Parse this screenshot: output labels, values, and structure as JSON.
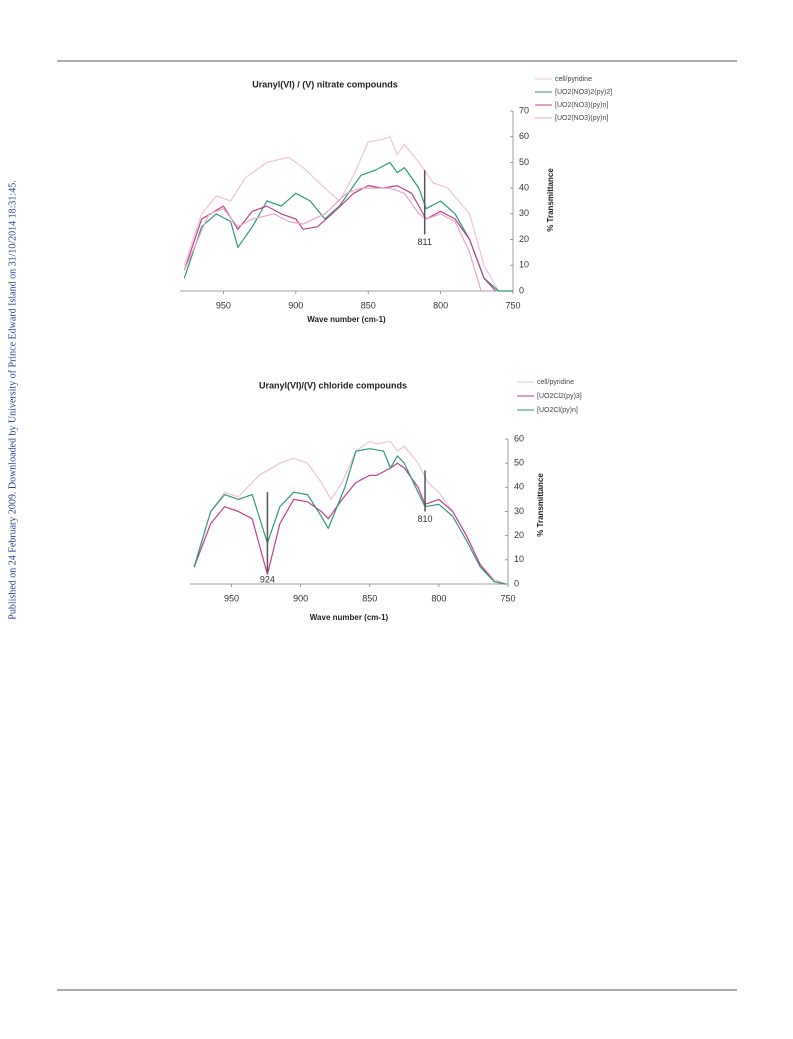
{
  "side_note": "Published on 24 February 2009. Downloaded by University of Prince Edward Island on 31/10/2014 18:31:45.",
  "chart_data": [
    {
      "type": "line",
      "title": "Uranyl(VI) / (V) nitrate compounds",
      "x_label": "Wave number (cm-1)",
      "y_label": "% Transmittance",
      "xlim": [
        980,
        750
      ],
      "xticks": [
        950,
        900,
        850,
        800,
        750
      ],
      "ylim": [
        0,
        70
      ],
      "yticks": [
        0,
        10,
        20,
        30,
        40,
        50,
        60,
        70
      ],
      "y_axis_side": "right",
      "series": [
        {
          "name": "cell/pyridine",
          "color": "#f2c4d6",
          "x": [
            977,
            965,
            955,
            945,
            935,
            920,
            905,
            895,
            880,
            870,
            860,
            850,
            840,
            835,
            830,
            825,
            815,
            805,
            795,
            780,
            770,
            760
          ],
          "values": [
            10,
            30,
            37,
            35,
            44,
            50,
            52,
            48,
            40,
            35,
            45,
            58,
            59,
            60,
            53,
            57,
            50,
            42,
            40,
            30,
            10,
            0
          ]
        },
        {
          "name": "[UO2(NO3)2(py)2]",
          "color": "#2e9a7c",
          "x": [
            977,
            965,
            955,
            945,
            940,
            930,
            920,
            910,
            900,
            890,
            880,
            870,
            855,
            845,
            835,
            830,
            825,
            815,
            810,
            800,
            790,
            780,
            770,
            760,
            750
          ],
          "values": [
            5,
            25,
            30,
            27,
            17,
            25,
            35,
            33,
            38,
            35,
            28,
            33,
            45,
            47,
            50,
            46,
            48,
            40,
            32,
            35,
            30,
            20,
            5,
            0,
            0
          ]
        },
        {
          "name": "[UO2(NO3)(py)n]",
          "color": "#c2408e",
          "x": [
            977,
            965,
            950,
            940,
            930,
            920,
            910,
            900,
            895,
            885,
            875,
            860,
            850,
            840,
            830,
            820,
            810,
            800,
            790,
            780,
            770,
            762
          ],
          "values": [
            8,
            28,
            33,
            24,
            31,
            33,
            30,
            28,
            24,
            25,
            30,
            38,
            41,
            40,
            41,
            38,
            28,
            31,
            28,
            20,
            5,
            0
          ]
        },
        {
          "name": "[UO2(NO3)(py)n]",
          "color": "#e7a8c6",
          "x": [
            977,
            960,
            950,
            940,
            930,
            915,
            905,
            895,
            880,
            865,
            855,
            845,
            835,
            825,
            815,
            810,
            800,
            790,
            780,
            772
          ],
          "values": [
            8,
            30,
            32,
            25,
            28,
            30,
            27,
            26,
            30,
            38,
            40,
            40,
            40,
            38,
            30,
            28,
            30,
            27,
            15,
            0
          ]
        }
      ],
      "annotations": [
        {
          "label": "811",
          "x": 811,
          "y": [
            22,
            47
          ]
        }
      ]
    },
    {
      "type": "line",
      "title": "Uranyl(VI)/(V) chloride compounds",
      "x_label": "Wave number (cm-1)",
      "y_label": "% Transmittance",
      "xlim": [
        980,
        750
      ],
      "xticks": [
        950,
        900,
        850,
        800,
        750
      ],
      "ylim": [
        0,
        60
      ],
      "yticks": [
        0,
        10,
        20,
        30,
        40,
        50,
        60
      ],
      "y_axis_side": "right",
      "series": [
        {
          "name": "cell/pyridine",
          "color": "#f2c4d6",
          "x": [
            977,
            965,
            955,
            945,
            930,
            915,
            905,
            895,
            885,
            878,
            870,
            860,
            850,
            845,
            835,
            830,
            825,
            815,
            808,
            800,
            790,
            780,
            770,
            760,
            752
          ],
          "values": [
            7,
            30,
            38,
            36,
            45,
            50,
            52,
            50,
            42,
            35,
            42,
            55,
            59,
            58,
            59,
            55,
            57,
            50,
            42,
            38,
            30,
            20,
            8,
            2,
            0
          ]
        },
        {
          "name": "[UO2Cl2(py)3]",
          "color": "#c2408e",
          "x": [
            977,
            965,
            955,
            945,
            935,
            924,
            915,
            905,
            895,
            885,
            880,
            870,
            860,
            850,
            845,
            835,
            830,
            825,
            815,
            810,
            800,
            790,
            780,
            770,
            760,
            752
          ],
          "values": [
            7,
            25,
            32,
            30,
            27,
            4,
            25,
            35,
            34,
            30,
            27,
            35,
            42,
            45,
            45,
            48,
            50,
            48,
            40,
            33,
            35,
            30,
            20,
            8,
            1,
            0
          ]
        },
        {
          "name": "[UO2Cl(py)n]",
          "color": "#2e9a7c",
          "x": [
            977,
            965,
            955,
            945,
            935,
            924,
            915,
            905,
            895,
            885,
            880,
            868,
            860,
            850,
            840,
            835,
            830,
            825,
            815,
            810,
            800,
            790,
            780,
            770,
            760,
            752
          ],
          "values": [
            7,
            30,
            37,
            35,
            37,
            17,
            32,
            38,
            37,
            28,
            23,
            40,
            55,
            56,
            55,
            48,
            53,
            50,
            38,
            32,
            33,
            28,
            18,
            7,
            1,
            0
          ]
        }
      ],
      "annotations": [
        {
          "label": "924",
          "x": 924,
          "y": [
            5,
            38
          ]
        },
        {
          "label": "810",
          "x": 810,
          "y": [
            30,
            47
          ]
        }
      ]
    }
  ]
}
